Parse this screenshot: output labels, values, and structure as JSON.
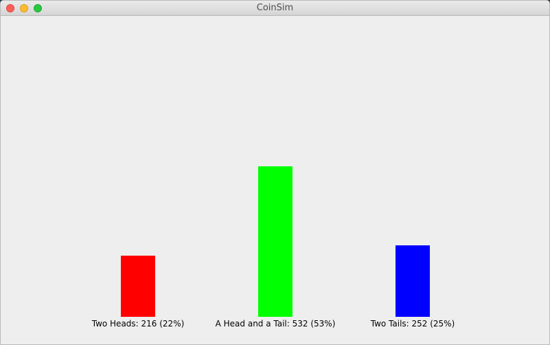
{
  "window": {
    "title": "CoinSim"
  },
  "chart_data": {
    "type": "bar",
    "categories": [
      "Two Heads",
      "A Head and a Tail",
      "Two Tails"
    ],
    "values": [
      216,
      532,
      252
    ],
    "percentages": [
      22,
      53,
      25
    ],
    "labels": [
      "Two Heads: 216 (22%)",
      "A Head and a Tail: 532 (53%)",
      "Two Tails: 252 (25%)"
    ],
    "colors": [
      "#ff0000",
      "#00ff00",
      "#0000ff"
    ]
  }
}
